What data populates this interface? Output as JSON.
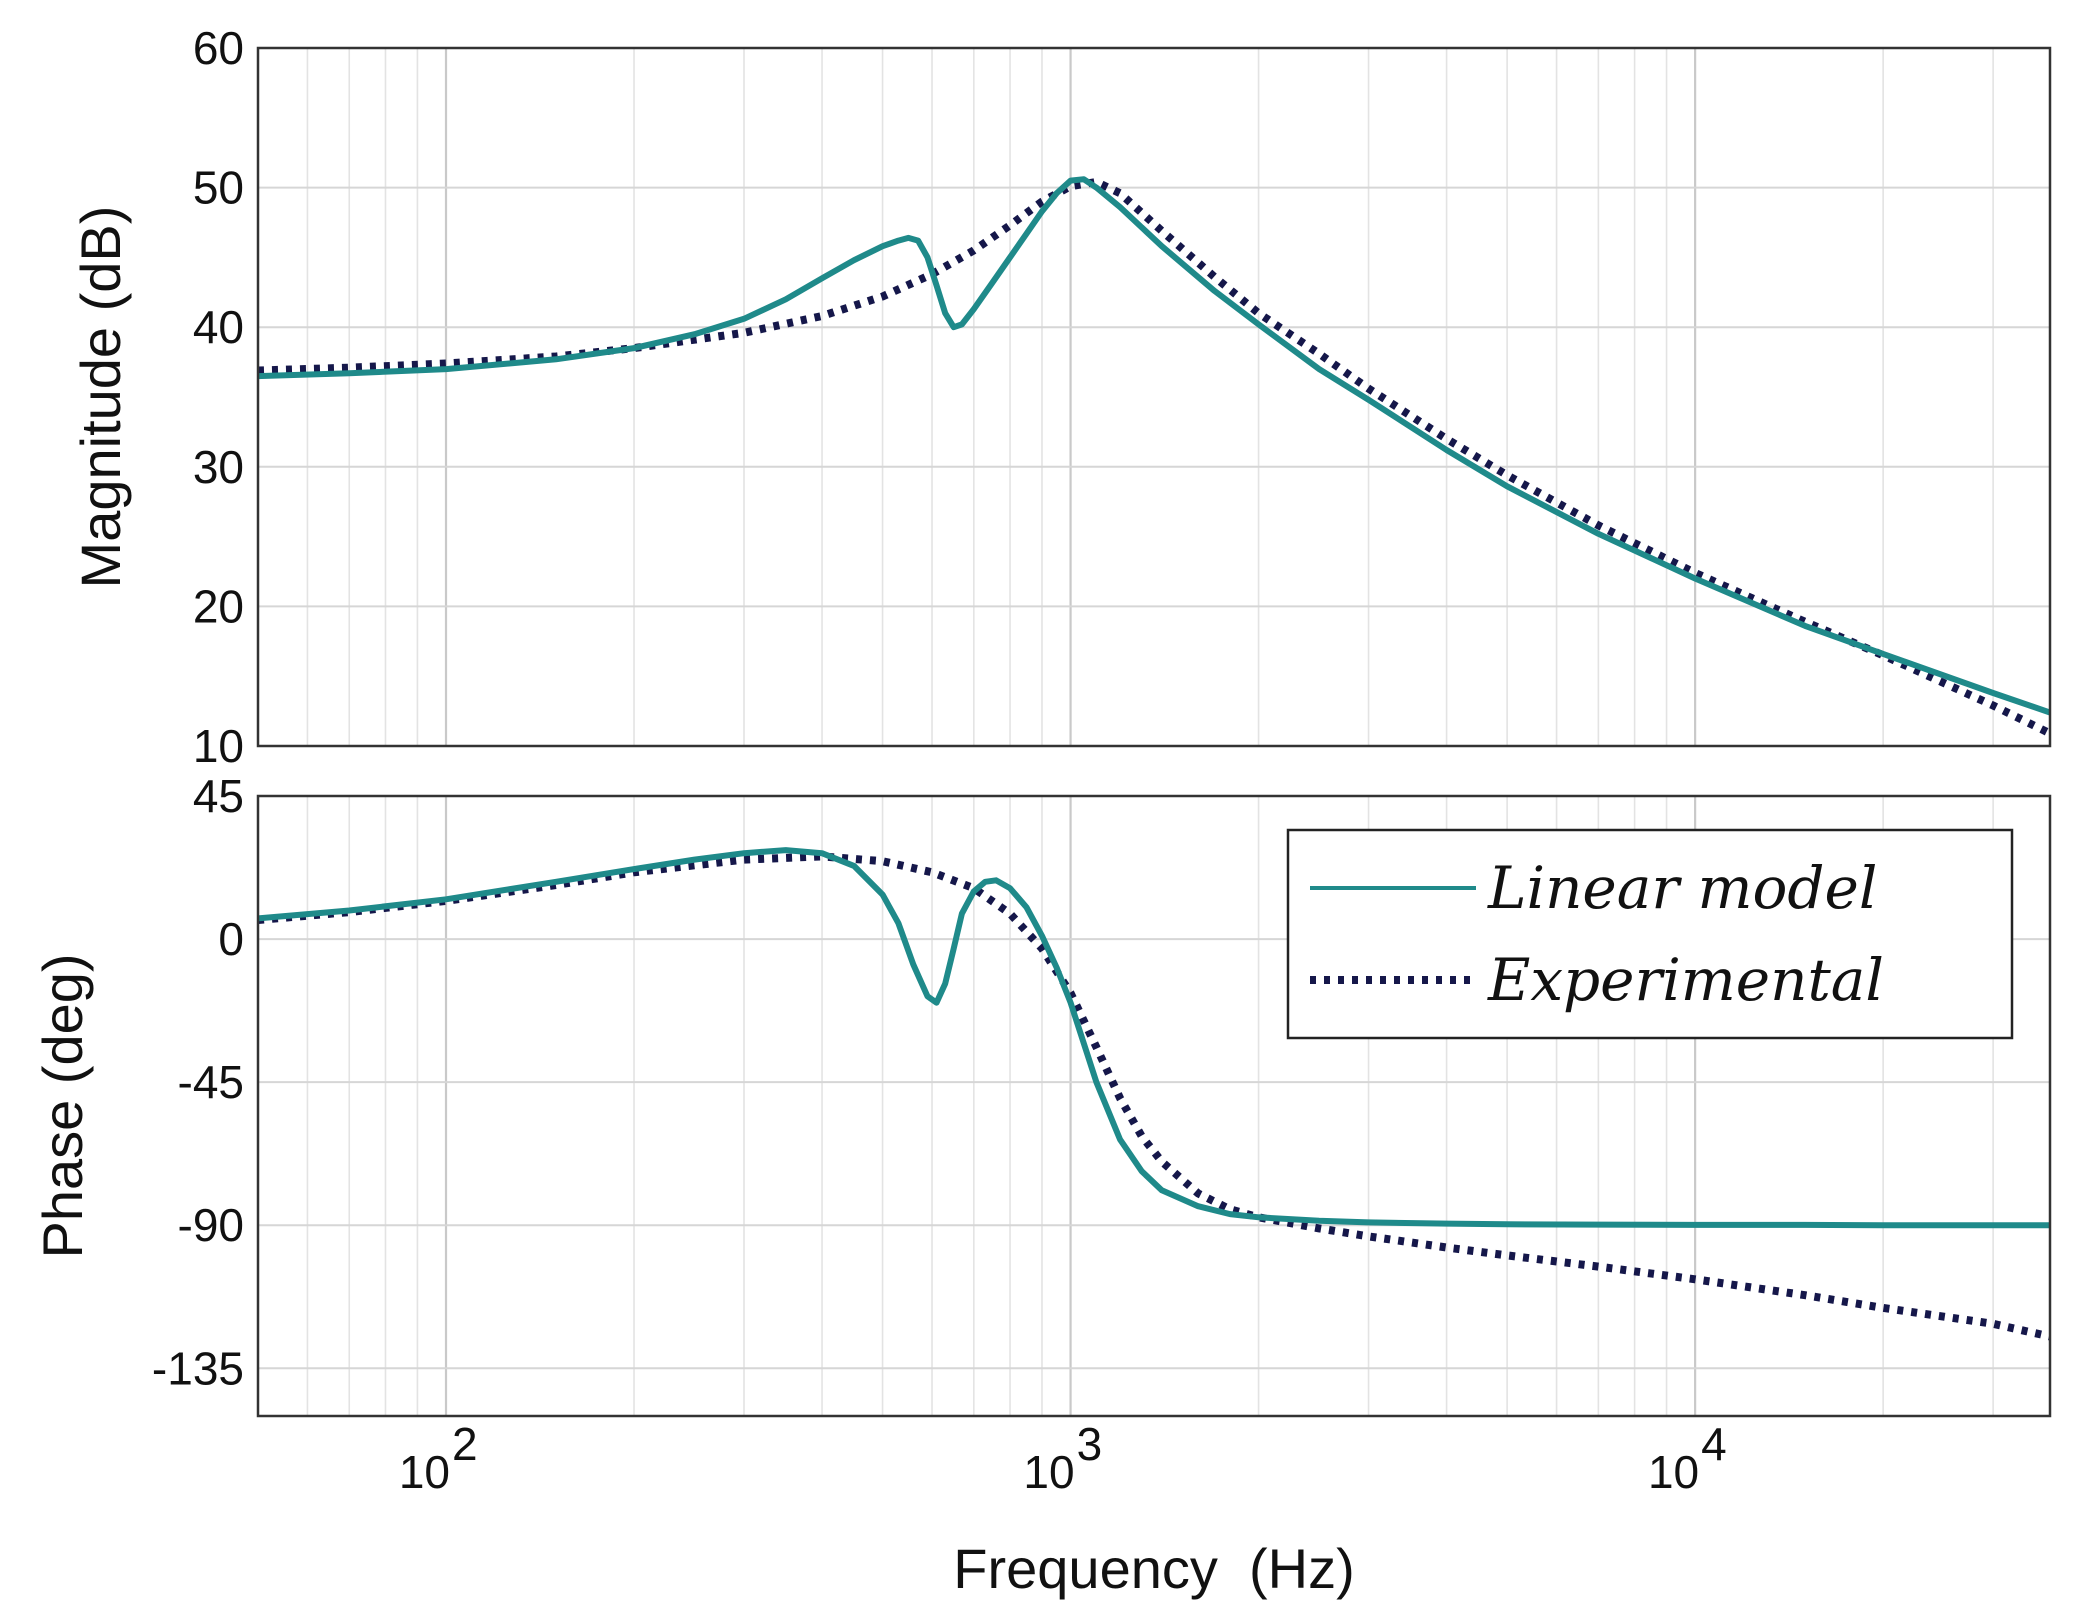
{
  "chart_data": [
    {
      "type": "line",
      "panel": "magnitude",
      "xscale": "log",
      "xlim": [
        50,
        37000
      ],
      "ylim": [
        10,
        60
      ],
      "yticks": [
        10,
        20,
        30,
        40,
        50,
        60
      ],
      "ytick_labels": [
        "10",
        "20",
        "30",
        "40",
        "50",
        "60"
      ],
      "ylabel": "Magnitude (dB)",
      "grid": true,
      "series": [
        {
          "name": "Linear model",
          "color": "#1f8a8a",
          "style": "solid",
          "x": [
            50,
            70,
            100,
            150,
            200,
            250,
            300,
            350,
            400,
            450,
            500,
            530,
            550,
            570,
            590,
            610,
            630,
            650,
            670,
            700,
            750,
            800,
            850,
            900,
            950,
            1000,
            1050,
            1100,
            1200,
            1400,
            1700,
            2000,
            2500,
            3000,
            4000,
            5000,
            7000,
            10000,
            15000,
            20000,
            30000,
            37000
          ],
          "y": [
            36.5,
            36.7,
            37.0,
            37.7,
            38.5,
            39.5,
            40.6,
            42.0,
            43.5,
            44.8,
            45.8,
            46.2,
            46.4,
            46.2,
            45.0,
            43.0,
            41.0,
            40.0,
            40.2,
            41.3,
            43.2,
            45.0,
            46.7,
            48.3,
            49.6,
            50.5,
            50.6,
            50.0,
            48.6,
            45.8,
            42.6,
            40.2,
            37.0,
            34.8,
            31.2,
            28.6,
            25.2,
            22.0,
            18.6,
            16.6,
            13.8,
            12.4
          ]
        },
        {
          "name": "Experimental",
          "color": "#15174a",
          "style": "dotted",
          "x": [
            50,
            70,
            100,
            150,
            200,
            300,
            400,
            500,
            600,
            700,
            800,
            900,
            1000,
            1100,
            1200,
            1400,
            1700,
            2000,
            2500,
            3000,
            4000,
            5000,
            7000,
            10000,
            15000,
            20000,
            30000,
            37000
          ],
          "y": [
            36.9,
            37.1,
            37.4,
            37.9,
            38.5,
            39.6,
            40.8,
            42.2,
            43.8,
            45.5,
            47.3,
            49.0,
            50.1,
            50.4,
            49.6,
            46.9,
            43.6,
            41.0,
            38.1,
            35.6,
            32.0,
            29.4,
            25.8,
            22.4,
            18.9,
            16.5,
            12.9,
            10.9
          ]
        }
      ]
    },
    {
      "type": "line",
      "panel": "phase",
      "xscale": "log",
      "xlim": [
        50,
        37000
      ],
      "ylim": [
        -150,
        45
      ],
      "yticks": [
        -135,
        -90,
        -45,
        0,
        45
      ],
      "ytick_labels": [
        "-135",
        "-90",
        "-45",
        "0",
        "45"
      ],
      "xticks": [
        100,
        1000,
        10000
      ],
      "xtick_bases": [
        "10",
        "10",
        "10"
      ],
      "xtick_exponents": [
        "2",
        "3",
        "4"
      ],
      "xlabel": "Frequency  (Hz)",
      "ylabel": "Phase (deg)",
      "grid": true,
      "legend_position": "top-right",
      "series": [
        {
          "name": "Linear model",
          "color": "#1f8a8a",
          "style": "solid",
          "x": [
            50,
            70,
            100,
            150,
            200,
            250,
            300,
            350,
            400,
            450,
            500,
            530,
            560,
            590,
            610,
            630,
            650,
            670,
            700,
            730,
            760,
            800,
            850,
            900,
            950,
            1000,
            1100,
            1200,
            1300,
            1400,
            1600,
            1800,
            2000,
            2500,
            3000,
            4000,
            5000,
            7000,
            10000,
            15000,
            20000,
            30000,
            37000
          ],
          "y": [
            6.5,
            9.0,
            12.5,
            18.0,
            22.0,
            25.0,
            27.0,
            28.0,
            27.0,
            23.0,
            14.0,
            5.0,
            -8.0,
            -18.0,
            -20.0,
            -14.0,
            -3.0,
            8.0,
            15.0,
            18.0,
            18.5,
            16.0,
            10.0,
            1.0,
            -9.0,
            -20.0,
            -45.0,
            -63.0,
            -73.0,
            -79.0,
            -84.0,
            -86.5,
            -87.5,
            -88.6,
            -89.1,
            -89.5,
            -89.7,
            -89.8,
            -89.9,
            -89.9,
            -90.0,
            -90.0,
            -90.0
          ]
        },
        {
          "name": "Experimental",
          "color": "#15174a",
          "style": "dotted",
          "x": [
            50,
            70,
            100,
            150,
            200,
            300,
            400,
            500,
            600,
            700,
            800,
            900,
            1000,
            1100,
            1200,
            1300,
            1400,
            1600,
            1800,
            2000,
            2500,
            3000,
            4000,
            5000,
            7000,
            10000,
            15000,
            20000,
            30000,
            37000
          ],
          "y": [
            6.0,
            8.5,
            12.0,
            17.0,
            21.0,
            25.0,
            26.0,
            24.5,
            21.0,
            16.0,
            8.0,
            -3.0,
            -17.0,
            -34.0,
            -50.0,
            -62.0,
            -70.0,
            -80.0,
            -85.0,
            -87.5,
            -91.0,
            -93.5,
            -97.0,
            -99.5,
            -103.0,
            -107.0,
            -112.0,
            -116.0,
            -121.0,
            -125.0
          ]
        }
      ]
    }
  ]
}
